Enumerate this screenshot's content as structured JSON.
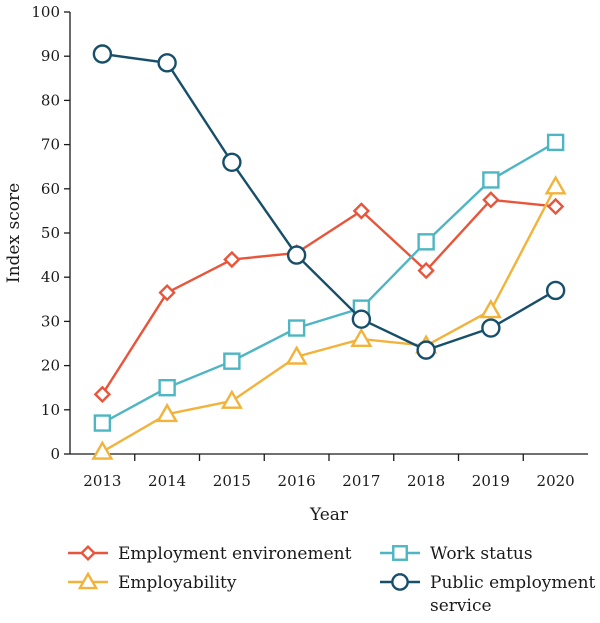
{
  "chart_data": {
    "type": "line",
    "title": "",
    "xlabel": "Year",
    "ylabel": "Index score",
    "ylim": [
      0,
      100
    ],
    "yticks": [
      "0",
      "10",
      "20",
      "30",
      "40",
      "50",
      "60",
      "70",
      "80",
      "90",
      "100"
    ],
    "categories": [
      "2013",
      "2014",
      "2015",
      "2016",
      "2017",
      "2018",
      "2019",
      "2020"
    ],
    "grid": false,
    "legend_position": "bottom",
    "series": [
      {
        "name": "Employment environement",
        "color": "#e8553b",
        "marker": "diamond",
        "values": [
          13.5,
          36.5,
          44,
          45.5,
          55,
          41.5,
          57.5,
          56
        ]
      },
      {
        "name": "Employability",
        "color": "#f2b33b",
        "marker": "triangle",
        "values": [
          0.5,
          9,
          12,
          22,
          26,
          24.5,
          32.5,
          60.5
        ]
      },
      {
        "name": "Work status",
        "color": "#4eb6c3",
        "marker": "square",
        "values": [
          7,
          15,
          21,
          28.5,
          33,
          48,
          62,
          70.5
        ]
      },
      {
        "name": "Public employment service",
        "color": "#174f6b",
        "marker": "circle",
        "values": [
          90.5,
          88.5,
          66,
          45,
          30.5,
          23.5,
          28.5,
          37
        ]
      }
    ]
  }
}
